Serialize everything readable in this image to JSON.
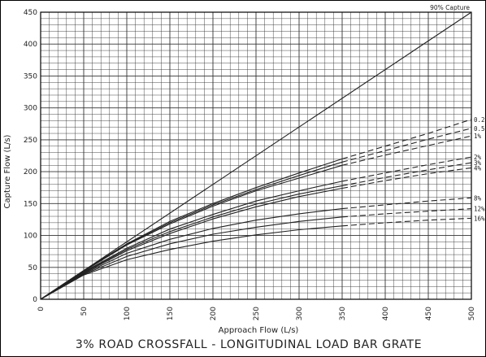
{
  "chart_data": {
    "type": "line",
    "title": "3% ROAD CROSSFALL - LONGITUDINAL LOAD BAR GRATE",
    "xlabel": "Approach Flow (L/s)",
    "ylabel": "Capture Flow (L/s)",
    "xlim": [
      0,
      500
    ],
    "ylim": [
      0,
      450
    ],
    "x_ticks": [
      "0",
      "50",
      "100",
      "150",
      "200",
      "250",
      "300",
      "350",
      "400",
      "450",
      "500"
    ],
    "y_ticks": [
      "0",
      "50",
      "100",
      "150",
      "200",
      "250",
      "300",
      "350",
      "400",
      "450"
    ],
    "grid": true,
    "reference_line": {
      "label": "90% Capture",
      "x": [
        0,
        500
      ],
      "y": [
        0,
        450
      ]
    },
    "dashed_from_x": 350,
    "series": [
      {
        "name": "0.2",
        "x": [
          0,
          50,
          100,
          150,
          200,
          250,
          300,
          350,
          400,
          450,
          500
        ],
        "y": [
          0,
          45,
          87,
          122,
          150,
          175,
          198,
          220,
          240,
          260,
          282
        ]
      },
      {
        "name": "0.5",
        "x": [
          0,
          50,
          100,
          150,
          200,
          250,
          300,
          350,
          400,
          450,
          500
        ],
        "y": [
          0,
          45,
          86,
          120,
          148,
          172,
          194,
          215,
          233,
          251,
          268
        ]
      },
      {
        "name": "1%",
        "x": [
          0,
          50,
          100,
          150,
          200,
          250,
          300,
          350,
          400,
          450,
          500
        ],
        "y": [
          0,
          44,
          85,
          118,
          146,
          170,
          190,
          210,
          226,
          241,
          256
        ]
      },
      {
        "name": "2%",
        "x": [
          0,
          50,
          100,
          150,
          200,
          250,
          300,
          350,
          400,
          450,
          500
        ],
        "y": [
          0,
          43,
          80,
          110,
          133,
          154,
          170,
          185,
          198,
          211,
          223
        ]
      },
      {
        "name": "3%",
        "x": [
          0,
          50,
          100,
          150,
          200,
          250,
          300,
          350,
          400,
          450,
          500
        ],
        "y": [
          0,
          42,
          78,
          106,
          129,
          149,
          165,
          178,
          191,
          203,
          214
        ]
      },
      {
        "name": "4%",
        "x": [
          0,
          50,
          100,
          150,
          200,
          250,
          300,
          350,
          400,
          450,
          500
        ],
        "y": [
          0,
          41,
          76,
          103,
          126,
          145,
          161,
          174,
          186,
          197,
          206
        ]
      },
      {
        "name": "8%",
        "x": [
          0,
          50,
          100,
          150,
          200,
          250,
          300,
          350,
          400,
          450,
          500
        ],
        "y": [
          0,
          40,
          72,
          94,
          111,
          124,
          134,
          142,
          148,
          154,
          159
        ]
      },
      {
        "name": "12%",
        "x": [
          0,
          50,
          100,
          150,
          200,
          250,
          300,
          350,
          400,
          450,
          500
        ],
        "y": [
          0,
          39,
          67,
          87,
          102,
          113,
          122,
          129,
          134,
          138,
          142
        ]
      },
      {
        "name": "16%",
        "x": [
          0,
          50,
          100,
          150,
          200,
          250,
          300,
          350,
          400,
          450,
          500
        ],
        "y": [
          0,
          38,
          62,
          78,
          91,
          101,
          109,
          115,
          120,
          124,
          127
        ]
      }
    ]
  }
}
